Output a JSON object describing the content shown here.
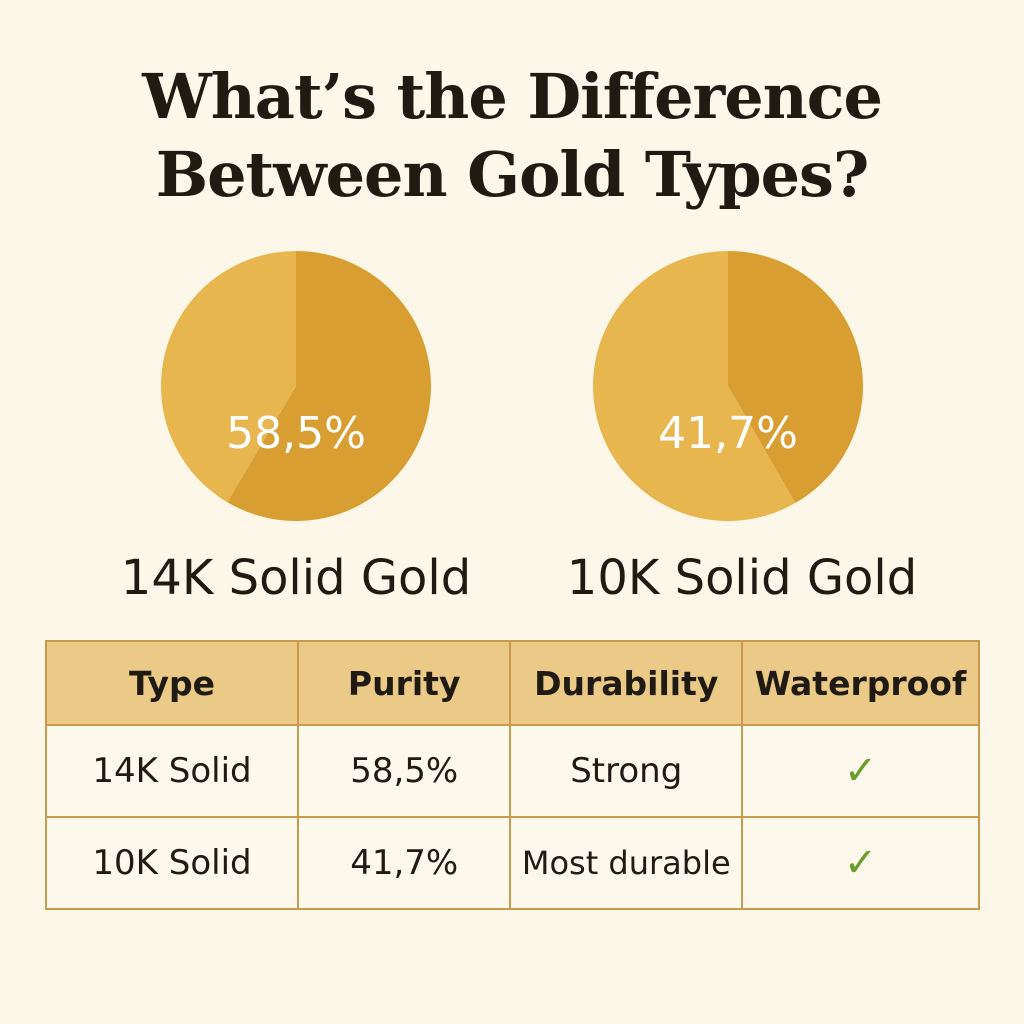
{
  "title_line1": "What’s the Difference",
  "title_line2": "Between Gold Types?",
  "colors": {
    "background": "#fdf7e9",
    "gold_dark": "#d89e32",
    "gold_light": "#e8b64f",
    "header": "#ebc987",
    "border": "#c99a4e",
    "check": "#6a9e2e"
  },
  "chart_data": [
    {
      "type": "pie",
      "title": "14K Solid Gold",
      "label": "58,5%",
      "slices": [
        {
          "value": 58.5,
          "color": "#d89e32"
        },
        {
          "value": 41.5,
          "color": "#e8b64f"
        }
      ]
    },
    {
      "type": "pie",
      "title": "10K Solid Gold",
      "label": "41,7%",
      "slices": [
        {
          "value": 41.7,
          "color": "#d89e32"
        },
        {
          "value": 58.3,
          "color": "#e8b64f"
        }
      ]
    }
  ],
  "table": {
    "headers": [
      "Type",
      "Purity",
      "Durability",
      "Waterproof"
    ],
    "rows": [
      {
        "type": "14K Solid",
        "purity": "58,5%",
        "durability": "Strong",
        "waterproof": "✓",
        "waterproof_icon": "check-icon"
      },
      {
        "type": "10K Solid",
        "purity": "41,7%",
        "durability": "Most durable",
        "waterproof": "✓",
        "waterproof_icon": "check-icon"
      }
    ]
  }
}
